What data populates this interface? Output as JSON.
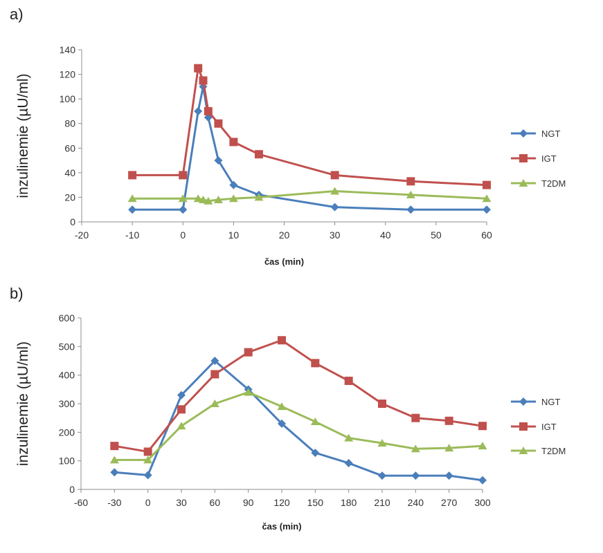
{
  "panels": [
    {
      "label": "a)"
    },
    {
      "label": "b)"
    }
  ],
  "colors": {
    "NGT": "#4a7ebb",
    "IGT": "#c0504d",
    "T2DM": "#9bbb59"
  },
  "chart_data": [
    {
      "type": "line",
      "title": "",
      "xlabel": "čas (min)",
      "ylabel": "inzulinemie (µU/ml)",
      "xlim": [
        -20,
        60
      ],
      "xticks": [
        -20,
        -10,
        0,
        10,
        20,
        30,
        40,
        50,
        60
      ],
      "ylim": [
        0,
        140
      ],
      "yticks": [
        0,
        20,
        40,
        60,
        80,
        100,
        120,
        140
      ],
      "grid": false,
      "legend": "right",
      "series": [
        {
          "name": "NGT",
          "marker": "diamond",
          "x": [
            -10,
            0,
            3,
            4,
            5,
            7,
            10,
            15,
            30,
            45,
            60
          ],
          "y": [
            10,
            10,
            90,
            110,
            85,
            50,
            30,
            22,
            12,
            10,
            10
          ]
        },
        {
          "name": "IGT",
          "marker": "square",
          "x": [
            -10,
            0,
            3,
            4,
            5,
            7,
            10,
            15,
            30,
            45,
            60
          ],
          "y": [
            38,
            38,
            125,
            115,
            90,
            80,
            65,
            55,
            38,
            33,
            30
          ]
        },
        {
          "name": "T2DM",
          "marker": "triangle",
          "x": [
            -10,
            0,
            3,
            4,
            5,
            7,
            10,
            15,
            30,
            45,
            60
          ],
          "y": [
            19,
            19,
            19,
            18,
            17,
            18,
            19,
            20,
            25,
            22,
            19
          ]
        }
      ]
    },
    {
      "type": "line",
      "title": "",
      "xlabel": "čas (min)",
      "ylabel": "inzulinemie (µU/ml)",
      "xlim": [
        -60,
        300
      ],
      "xticks": [
        -60,
        -30,
        0,
        30,
        60,
        90,
        120,
        150,
        180,
        210,
        240,
        270,
        300
      ],
      "ylim": [
        0,
        600
      ],
      "yticks": [
        0,
        100,
        200,
        300,
        400,
        500,
        600
      ],
      "grid": false,
      "legend": "right",
      "series": [
        {
          "name": "NGT",
          "marker": "diamond",
          "x": [
            -30,
            0,
            30,
            60,
            90,
            120,
            150,
            180,
            210,
            240,
            270,
            300
          ],
          "y": [
            60,
            50,
            330,
            450,
            350,
            230,
            128,
            92,
            48,
            48,
            48,
            32
          ]
        },
        {
          "name": "IGT",
          "marker": "square",
          "x": [
            -30,
            0,
            30,
            60,
            90,
            120,
            150,
            180,
            210,
            240,
            270,
            300
          ],
          "y": [
            152,
            132,
            280,
            403,
            480,
            522,
            442,
            380,
            300,
            250,
            240,
            222
          ]
        },
        {
          "name": "T2DM",
          "marker": "triangle",
          "x": [
            -30,
            0,
            30,
            60,
            90,
            120,
            150,
            180,
            210,
            240,
            270,
            300
          ],
          "y": [
            103,
            103,
            222,
            300,
            340,
            290,
            237,
            180,
            162,
            142,
            145,
            152
          ]
        }
      ]
    }
  ]
}
